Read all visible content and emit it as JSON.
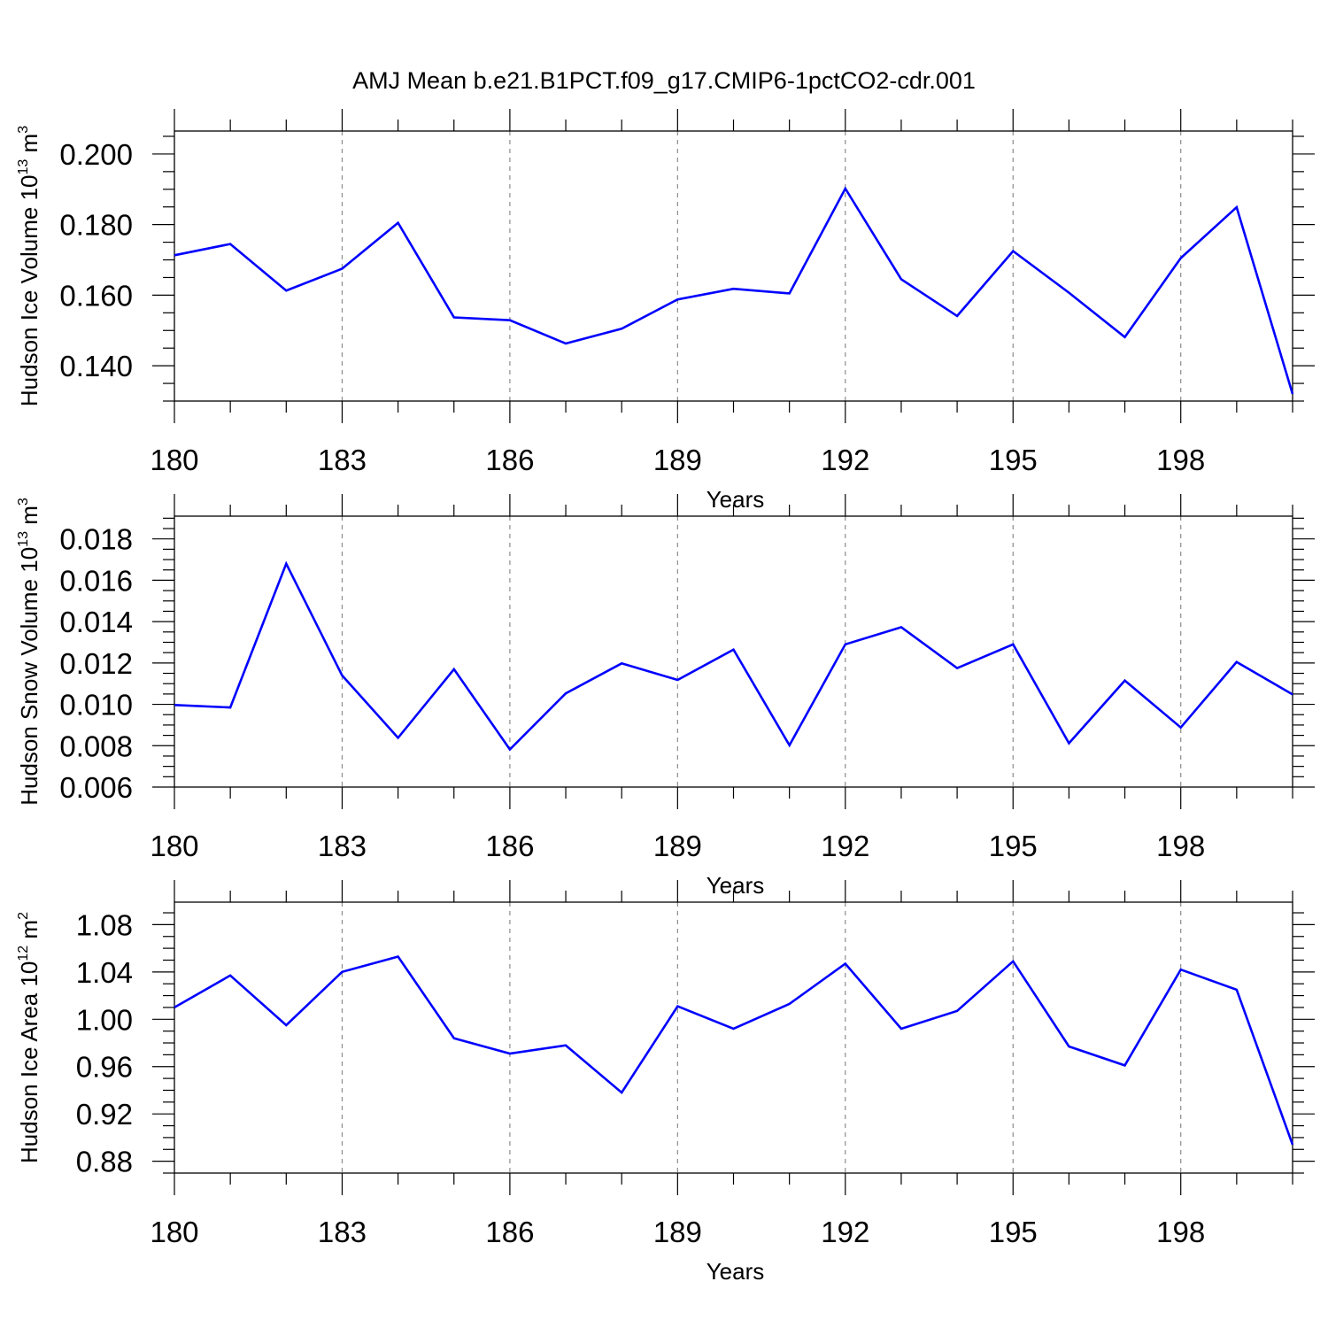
{
  "figure": {
    "title": "AMJ Mean b.e21.B1PCT.f09_g17.CMIP6-1pctCO2-cdr.001",
    "line_color": "#0000ff"
  },
  "chart_data": [
    {
      "type": "line",
      "title": "AMJ Mean b.e21.B1PCT.f09_g17.CMIP6-1pctCO2-cdr.001",
      "xlabel": "Years",
      "ylabel": {
        "text": "Hudson Ice Volume 10",
        "exponent": "13",
        "unit_text": " m",
        "unit_exponent": "3"
      },
      "xlim": [
        180,
        200
      ],
      "ylim": [
        0.13,
        0.2065
      ],
      "xticks": [
        180,
        183,
        186,
        189,
        192,
        195,
        198
      ],
      "xtick_labels": [
        "180",
        "183",
        "186",
        "189",
        "192",
        "195",
        "198"
      ],
      "yticks": [
        0.14,
        0.16,
        0.18,
        0.2
      ],
      "ytick_labels": [
        "0.140",
        "0.160",
        "0.180",
        "0.200"
      ],
      "grid": "vertical dashed at major x ticks",
      "x": [
        180,
        181,
        182,
        183,
        184,
        185,
        186,
        187,
        188,
        189,
        190,
        191,
        192,
        193,
        194,
        195,
        196,
        197,
        198,
        199,
        200
      ],
      "series": [
        {
          "name": "Hudson Ice Volume",
          "values": [
            0.1713,
            0.1745,
            0.1613,
            0.1675,
            0.1805,
            0.1537,
            0.1529,
            0.1463,
            0.1505,
            0.1588,
            0.1618,
            0.1605,
            0.1902,
            0.1645,
            0.1541,
            0.1725,
            0.1607,
            0.1481,
            0.1705,
            0.1849,
            0.132
          ]
        }
      ]
    },
    {
      "type": "line",
      "xlabel": "Years",
      "ylabel": {
        "text": "Hudson Snow Volume 10",
        "exponent": "13",
        "unit_text": " m",
        "unit_exponent": "3"
      },
      "xlim": [
        180,
        200
      ],
      "ylim": [
        0.006,
        0.0191
      ],
      "xticks": [
        180,
        183,
        186,
        189,
        192,
        195,
        198
      ],
      "xtick_labels": [
        "180",
        "183",
        "186",
        "189",
        "192",
        "195",
        "198"
      ],
      "yticks": [
        0.006,
        0.008,
        0.01,
        0.012,
        0.014,
        0.016,
        0.018
      ],
      "ytick_labels": [
        "0.006",
        "0.008",
        "0.010",
        "0.012",
        "0.014",
        "0.016",
        "0.018"
      ],
      "grid": "vertical dashed at major x ticks",
      "x": [
        180,
        181,
        182,
        183,
        184,
        185,
        186,
        187,
        188,
        189,
        190,
        191,
        192,
        193,
        194,
        195,
        196,
        197,
        198,
        199,
        200
      ],
      "series": [
        {
          "name": "Hudson Snow Volume",
          "values": [
            0.00997,
            0.00985,
            0.0168,
            0.0114,
            0.00838,
            0.0117,
            0.00782,
            0.01053,
            0.01198,
            0.01118,
            0.01265,
            0.00802,
            0.0129,
            0.01373,
            0.01175,
            0.0129,
            0.00812,
            0.01115,
            0.00888,
            0.01205,
            0.01048
          ]
        }
      ]
    },
    {
      "type": "line",
      "xlabel": "Years",
      "ylabel": {
        "text": "Hudson Ice Area 10",
        "exponent": "12",
        "unit_text": " m",
        "unit_exponent": "2"
      },
      "xlim": [
        180,
        200
      ],
      "ylim": [
        0.87,
        1.099
      ],
      "xticks": [
        180,
        183,
        186,
        189,
        192,
        195,
        198
      ],
      "xtick_labels": [
        "180",
        "183",
        "186",
        "189",
        "192",
        "195",
        "198"
      ],
      "yticks": [
        0.88,
        0.92,
        0.96,
        1.0,
        1.04,
        1.08
      ],
      "ytick_labels": [
        "0.88",
        "0.92",
        "0.96",
        "1.00",
        "1.04",
        "1.08"
      ],
      "grid": "vertical dashed at major x ticks",
      "x": [
        180,
        181,
        182,
        183,
        184,
        185,
        186,
        187,
        188,
        189,
        190,
        191,
        192,
        193,
        194,
        195,
        196,
        197,
        198,
        199,
        200
      ],
      "series": [
        {
          "name": "Hudson Ice Area",
          "values": [
            1.01,
            1.037,
            0.995,
            1.04,
            1.053,
            0.984,
            0.971,
            0.978,
            0.938,
            1.011,
            0.992,
            1.013,
            1.047,
            0.992,
            1.007,
            1.049,
            0.977,
            0.961,
            1.042,
            1.025,
            0.894
          ]
        }
      ]
    }
  ]
}
